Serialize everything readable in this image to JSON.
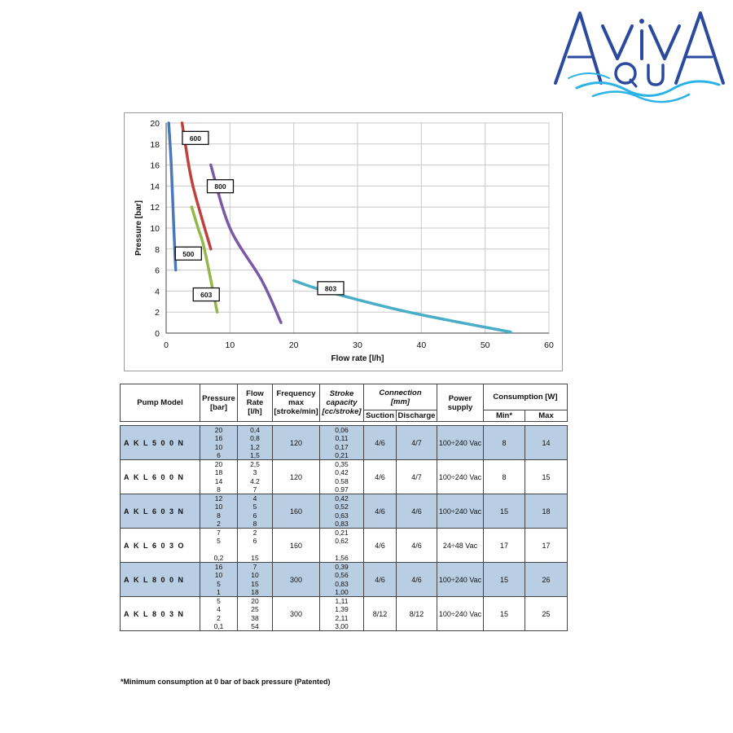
{
  "logo": {
    "text": "AvivA",
    "sub": "QU",
    "colors": {
      "blue": "#2b4a9e",
      "cyan": "#2cb3e6"
    }
  },
  "chart_data": {
    "type": "line",
    "title": "",
    "xlabel": "Flow rate [l/h]",
    "ylabel": "Pressure [bar]",
    "xlim": [
      0,
      60
    ],
    "ylim": [
      0,
      20
    ],
    "x_ticks": [
      "0",
      "10",
      "20",
      "30",
      "40",
      "50",
      "60"
    ],
    "y_ticks": [
      "0",
      "2",
      "4",
      "6",
      "8",
      "10",
      "12",
      "14",
      "16",
      "18",
      "20"
    ],
    "grid": true,
    "series": [
      {
        "name": "500",
        "color": "#4a78b8",
        "points": [
          [
            0.4,
            20
          ],
          [
            0.8,
            16
          ],
          [
            1.2,
            10
          ],
          [
            1.5,
            6
          ]
        ]
      },
      {
        "name": "600",
        "color": "#c0403c",
        "points": [
          [
            2.5,
            20
          ],
          [
            3,
            18
          ],
          [
            4.2,
            14
          ],
          [
            7,
            8
          ]
        ]
      },
      {
        "name": "603",
        "color": "#93b84a",
        "points": [
          [
            4,
            12
          ],
          [
            5,
            10
          ],
          [
            6,
            8
          ],
          [
            8,
            2
          ]
        ]
      },
      {
        "name": "800",
        "color": "#7a5aa6",
        "points": [
          [
            7,
            16
          ],
          [
            10,
            10
          ],
          [
            15,
            5
          ],
          [
            18,
            1
          ]
        ]
      },
      {
        "name": "803",
        "color": "#4aaec6",
        "points": [
          [
            20,
            5
          ],
          [
            25,
            4
          ],
          [
            38,
            2
          ],
          [
            54,
            0.1
          ]
        ]
      }
    ]
  },
  "table": {
    "headers": {
      "model": "Pump Model",
      "pressure": [
        "Pressure",
        "[bar]"
      ],
      "flow": [
        "Flow",
        "Rate",
        "[l/h]"
      ],
      "frequency": [
        "Frequency",
        "max",
        "[stroke/min]"
      ],
      "stroke": [
        "Stroke",
        "capacity",
        "[cc/stroke]"
      ],
      "connection": [
        "Connection",
        "[mm]"
      ],
      "suction": "Suction",
      "discharge": "Discharge",
      "power": [
        "Power",
        "supply"
      ],
      "consumption": "Consumption [W]",
      "min": "Min*",
      "max": "Max"
    },
    "rows": [
      {
        "model": "AKL500N",
        "pressure": [
          "20",
          "16",
          "10",
          "6"
        ],
        "flow": [
          "0,4",
          "0,8",
          "1,2",
          "1,5"
        ],
        "frequency": "120",
        "stroke": [
          "0,06",
          "0,11",
          "0,17",
          "0,21"
        ],
        "suction": "4/6",
        "discharge": "4/7",
        "power": "100÷240 Vac",
        "min": "8",
        "max": "14"
      },
      {
        "model": "AKL600N",
        "pressure": [
          "20",
          "18",
          "14",
          "8"
        ],
        "flow": [
          "2,5",
          "3",
          "4.2",
          "7"
        ],
        "frequency": "120",
        "stroke": [
          "0,35",
          "0,42",
          "0.58",
          "0.97"
        ],
        "suction": "4/6",
        "discharge": "4/7",
        "power": "100÷240 Vac",
        "min": "8",
        "max": "15"
      },
      {
        "model": "AKL603N",
        "pressure": [
          "12",
          "10",
          "8",
          "2"
        ],
        "flow": [
          "4",
          "5",
          "6",
          "8"
        ],
        "frequency": "160",
        "stroke": [
          "0,42",
          "0,52",
          "0,63",
          "0,83"
        ],
        "suction": "4/6",
        "discharge": "4/6",
        "power": "100÷240 Vac",
        "min": "15",
        "max": "18"
      },
      {
        "model": "AKL603O",
        "pressure": [
          "7",
          "5",
          "",
          "0,2"
        ],
        "flow": [
          "2",
          "6",
          "",
          "15"
        ],
        "frequency": "160",
        "stroke": [
          "0,21",
          "0,62",
          "",
          "1,56"
        ],
        "suction": "4/6",
        "discharge": "4/6",
        "power": "24÷48 Vac",
        "min": "17",
        "max": "17"
      },
      {
        "model": "AKL800N",
        "pressure": [
          "16",
          "10",
          "5",
          "1"
        ],
        "flow": [
          "7",
          "10",
          "15",
          "18"
        ],
        "frequency": "300",
        "stroke": [
          "0,39",
          "0,56",
          "0,83",
          "1,00"
        ],
        "suction": "4/6",
        "discharge": "4/6",
        "power": "100÷240 Vac",
        "min": "15",
        "max": "26"
      },
      {
        "model": "AKL803N",
        "pressure": [
          "5",
          "4",
          "2",
          "0,1"
        ],
        "flow": [
          "20",
          "25",
          "38",
          "54"
        ],
        "frequency": "300",
        "stroke": [
          "1,11",
          "1,39",
          "2,11",
          "3,00"
        ],
        "suction": "8/12",
        "discharge": "8/12",
        "power": "100÷240 Vac",
        "min": "15",
        "max": "25"
      }
    ],
    "footnote": "*Minimum consumption at 0 bar of back pressure (Patented)"
  }
}
